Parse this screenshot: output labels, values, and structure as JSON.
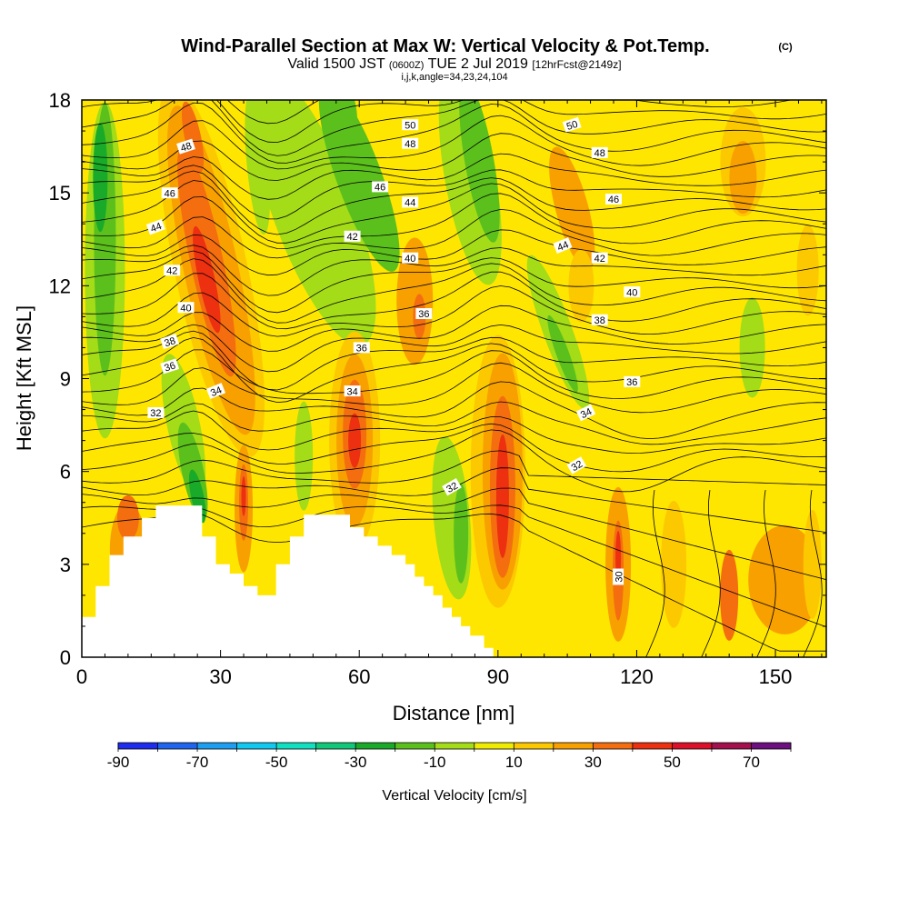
{
  "header": {
    "title": "Wind-Parallel Section at Max W: Vertical Velocity & Pot.Temp.",
    "copyright": "(C)",
    "valid_prefix": "Valid 1500 JST",
    "valid_utc": "(0600Z)",
    "valid_date": "TUE 2 Jul 2019",
    "forecast": "[12hrFcst@2149z]",
    "indices": "i,j,k,angle=34,23,24,104"
  },
  "chart_data": {
    "type": "heatmap",
    "xlabel": "Distance [nm]",
    "ylabel": "Height [Kft MSL]",
    "xlim": [
      0,
      161
    ],
    "ylim": [
      0,
      18
    ],
    "x_ticks": [
      "0",
      "30",
      "60",
      "90",
      "120",
      "150"
    ],
    "y_ticks": [
      "0",
      "3",
      "6",
      "9",
      "12",
      "15",
      "18"
    ],
    "colorbar": {
      "label": "Vertical Velocity [cm/s]",
      "tick_labels": [
        "-90",
        "-70",
        "-50",
        "-30",
        "-10",
        "10",
        "30",
        "50",
        "70"
      ],
      "bins": [
        -90,
        -80,
        -70,
        -60,
        -50,
        -40,
        -30,
        -20,
        -10,
        0,
        10,
        20,
        30,
        40,
        50,
        60,
        70
      ],
      "colors": [
        "#1e2cf0",
        "#1f64ec",
        "#1d9ef0",
        "#10c8f0",
        "#10e0c0",
        "#10c878",
        "#18aa28",
        "#5cc01c",
        "#a4dc18",
        "#f0ec00",
        "#fcc800",
        "#f8a000",
        "#f46e10",
        "#ec3010",
        "#dc1028",
        "#a4104e",
        "#6c1080"
      ]
    },
    "terrain_kft": [
      [
        0,
        1.3
      ],
      [
        3,
        1.3
      ],
      [
        3,
        2.3
      ],
      [
        6,
        2.3
      ],
      [
        6,
        3.3
      ],
      [
        9,
        3.3
      ],
      [
        9,
        3.9
      ],
      [
        13,
        3.9
      ],
      [
        13,
        4.5
      ],
      [
        16,
        4.5
      ],
      [
        16,
        4.9
      ],
      [
        26,
        4.9
      ],
      [
        26,
        3.9
      ],
      [
        29,
        3.9
      ],
      [
        29,
        3.0
      ],
      [
        32,
        3.0
      ],
      [
        32,
        2.7
      ],
      [
        35,
        2.7
      ],
      [
        35,
        2.3
      ],
      [
        38,
        2.3
      ],
      [
        38,
        2.0
      ],
      [
        42,
        2.0
      ],
      [
        42,
        3.0
      ],
      [
        45,
        3.0
      ],
      [
        45,
        3.9
      ],
      [
        48,
        3.9
      ],
      [
        48,
        4.6
      ],
      [
        58,
        4.6
      ],
      [
        58,
        4.2
      ],
      [
        61,
        4.2
      ],
      [
        61,
        3.9
      ],
      [
        64,
        3.9
      ],
      [
        64,
        3.6
      ],
      [
        67,
        3.6
      ],
      [
        67,
        3.3
      ],
      [
        70,
        3.3
      ],
      [
        70,
        3.0
      ],
      [
        72,
        3.0
      ],
      [
        72,
        2.6
      ],
      [
        74,
        2.6
      ],
      [
        74,
        2.3
      ],
      [
        76,
        2.3
      ],
      [
        76,
        2.0
      ],
      [
        78,
        2.0
      ],
      [
        78,
        1.6
      ],
      [
        80,
        1.6
      ],
      [
        80,
        1.3
      ],
      [
        82,
        1.3
      ],
      [
        82,
        1.0
      ],
      [
        84,
        1.0
      ],
      [
        84,
        0.7
      ],
      [
        87,
        0.7
      ],
      [
        87,
        0.3
      ],
      [
        89,
        0.3
      ],
      [
        89,
        0
      ]
    ],
    "contours": {
      "variable": "Pot.Temp.",
      "labels": [
        {
          "text": "50",
          "x": 71,
          "y": 17.2,
          "angle": 0
        },
        {
          "text": "50",
          "x": 106,
          "y": 17.2,
          "angle": -18
        },
        {
          "text": "48",
          "x": 22.5,
          "y": 16.5,
          "angle": -18
        },
        {
          "text": "48",
          "x": 71,
          "y": 16.6,
          "angle": 0
        },
        {
          "text": "48",
          "x": 112,
          "y": 16.3,
          "angle": 0
        },
        {
          "text": "46",
          "x": 19,
          "y": 15.0,
          "angle": 0
        },
        {
          "text": "46",
          "x": 64.5,
          "y": 15.2,
          "angle": 0
        },
        {
          "text": "46",
          "x": 115,
          "y": 14.8,
          "angle": 0
        },
        {
          "text": "44",
          "x": 16,
          "y": 13.9,
          "angle": -20
        },
        {
          "text": "44",
          "x": 71,
          "y": 14.7,
          "angle": 0
        },
        {
          "text": "44",
          "x": 104,
          "y": 13.3,
          "angle": -22
        },
        {
          "text": "42",
          "x": 19.5,
          "y": 12.5,
          "angle": 0
        },
        {
          "text": "42",
          "x": 58.5,
          "y": 13.6,
          "angle": 0
        },
        {
          "text": "42",
          "x": 112,
          "y": 12.9,
          "angle": 0
        },
        {
          "text": "40",
          "x": 22.5,
          "y": 11.3,
          "angle": 0
        },
        {
          "text": "40",
          "x": 71,
          "y": 12.9,
          "angle": 0
        },
        {
          "text": "40",
          "x": 119,
          "y": 11.8,
          "angle": 0
        },
        {
          "text": "38",
          "x": 19,
          "y": 10.2,
          "angle": -18
        },
        {
          "text": "38",
          "x": 112,
          "y": 10.9,
          "angle": 0
        },
        {
          "text": "36",
          "x": 19,
          "y": 9.4,
          "angle": -18
        },
        {
          "text": "36",
          "x": 60.5,
          "y": 10.0,
          "angle": 0
        },
        {
          "text": "36",
          "x": 74,
          "y": 11.1,
          "angle": 0
        },
        {
          "text": "36",
          "x": 119,
          "y": 8.9,
          "angle": 0
        },
        {
          "text": "34",
          "x": 29,
          "y": 8.6,
          "angle": -22
        },
        {
          "text": "34",
          "x": 58.5,
          "y": 8.6,
          "angle": 0
        },
        {
          "text": "34",
          "x": 109,
          "y": 7.9,
          "angle": -26
        },
        {
          "text": "32",
          "x": 16,
          "y": 7.9,
          "angle": 0
        },
        {
          "text": "32",
          "x": 80,
          "y": 5.5,
          "angle": -30
        },
        {
          "text": "32",
          "x": 107,
          "y": 6.2,
          "angle": -30
        },
        {
          "text": "30",
          "x": 116,
          "y": 2.6,
          "angle": -90
        }
      ]
    }
  }
}
